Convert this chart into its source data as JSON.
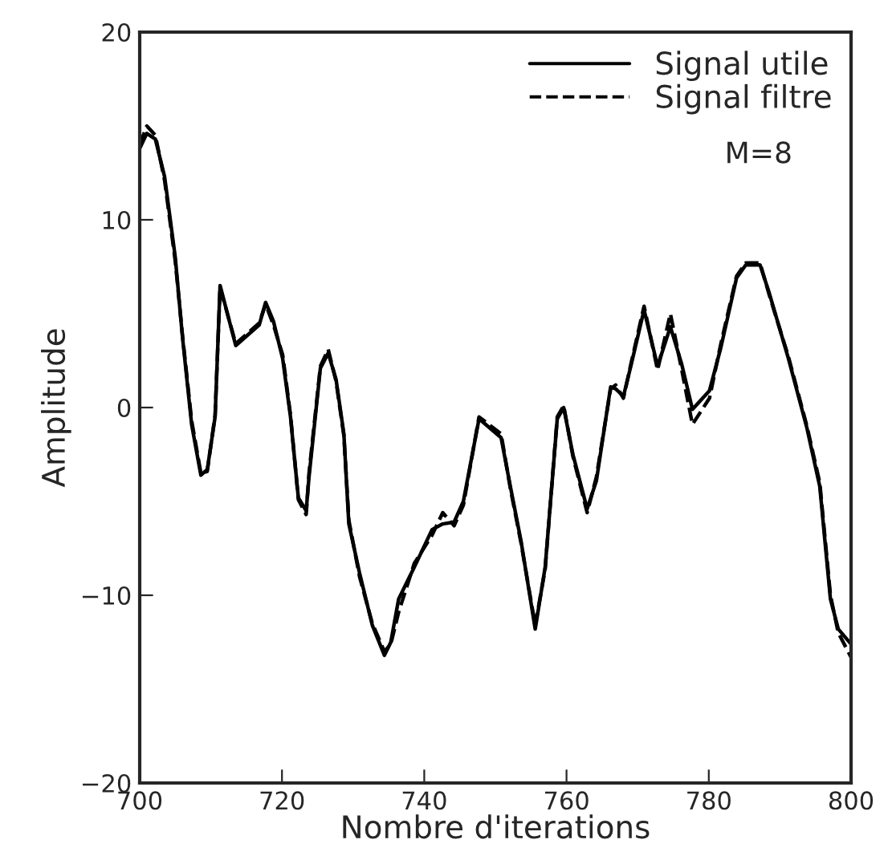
{
  "chart_data": {
    "type": "line",
    "xlabel": "Nombre d'iterations",
    "ylabel": "Amplitude",
    "xlim": [
      700,
      800
    ],
    "ylim": [
      -20,
      20
    ],
    "xticks": [
      700,
      720,
      740,
      760,
      780,
      800
    ],
    "yticks": [
      -20,
      -10,
      0,
      10,
      20
    ],
    "grid": false,
    "legend": "top right",
    "annotations": [
      "M=8"
    ],
    "series": [
      {
        "name": "Signal utile",
        "color": "#000000",
        "line_style": "solid",
        "x": [
          700,
          701,
          702.2,
          703.5,
          705,
          706,
          707.3,
          708.6,
          709.5,
          710.6,
          711.3,
          713.5,
          716.8,
          717.7,
          718.8,
          720.1,
          721.2,
          722.3,
          723.4,
          723.8,
          725.4,
          726.5,
          727.6,
          728.7,
          729.4,
          730.9,
          732.7,
          734.4,
          735.3,
          736.4,
          738.6,
          741.1,
          742.6,
          744.2,
          745.5,
          747.7,
          750.8,
          752.1,
          753.6,
          755.6,
          757,
          758.7,
          759.6,
          760.9,
          762.9,
          764.2,
          766.2,
          766.9,
          768,
          769.1,
          770.9,
          772.8,
          774.6,
          776.2,
          777.7,
          780.1,
          781.7,
          783.9,
          785.2,
          787.2,
          788.5,
          791.2,
          793.8,
          795.6,
          797.1,
          798.2,
          800
        ],
        "values": [
          13.8,
          14.6,
          14.3,
          12.3,
          8,
          3.8,
          -0.9,
          -3.6,
          -3.3,
          -0.5,
          6.5,
          3.3,
          4.4,
          5.6,
          4.6,
          2.6,
          -0.5,
          -4.8,
          -5.5,
          -3.7,
          2.1,
          2.9,
          1.5,
          -1.4,
          -6.2,
          -8.8,
          -11.6,
          -13.2,
          -12.5,
          -10.2,
          -8.5,
          -6.5,
          -6.2,
          -6.1,
          -5.0,
          -0.6,
          -1.6,
          -4.2,
          -7.1,
          -11.8,
          -8.5,
          -0.6,
          0.0,
          -2.5,
          -5.4,
          -3.9,
          1.1,
          1.0,
          0.6,
          2.3,
          5.2,
          2.2,
          4.3,
          2.3,
          -0.1,
          0.9,
          3.2,
          6.9,
          7.6,
          7.6,
          6.1,
          2.6,
          -1.1,
          -4.2,
          -10.2,
          -11.8,
          -12.6
        ]
      },
      {
        "name": "Signal filtre",
        "color": "#000000",
        "line_style": "dashed",
        "x": [
          700,
          701,
          702.2,
          703.5,
          705,
          706,
          707.3,
          708.6,
          709.5,
          710.6,
          711.3,
          713.5,
          716.8,
          717.7,
          718.8,
          720.1,
          721.2,
          722.3,
          723.4,
          723.8,
          725.4,
          726.5,
          727.6,
          728.7,
          729.4,
          730.9,
          732.7,
          734.4,
          735.3,
          736.4,
          738.6,
          741.1,
          742.6,
          744.2,
          745.5,
          747.7,
          750.8,
          752.1,
          753.6,
          755.6,
          757,
          758.7,
          759.6,
          760.9,
          762.9,
          764.2,
          766.2,
          766.9,
          768,
          769.1,
          770.9,
          772.8,
          774.6,
          776.2,
          777.7,
          780.1,
          781.7,
          783.9,
          785.2,
          787.2,
          788.5,
          791.2,
          793.8,
          795.6,
          797.1,
          798.2,
          800
        ],
        "values": [
          14.0,
          15.0,
          14.5,
          12.1,
          7.8,
          3.9,
          -0.7,
          -3.5,
          -3.4,
          -0.4,
          6.4,
          3.4,
          4.5,
          5.5,
          4.4,
          2.8,
          -0.4,
          -4.9,
          -5.7,
          -3.5,
          2.2,
          3.1,
          1.4,
          -1.5,
          -6.0,
          -9.0,
          -11.5,
          -13.0,
          -12.6,
          -10.9,
          -8.3,
          -6.8,
          -5.6,
          -6.3,
          -5.2,
          -0.5,
          -1.4,
          -4.3,
          -7.2,
          -11.6,
          -8.6,
          -0.5,
          0.1,
          -2.6,
          -5.6,
          -3.7,
          1.0,
          1.2,
          0.5,
          2.4,
          5.4,
          2.0,
          5.0,
          2.0,
          -0.9,
          0.5,
          3.4,
          7.0,
          7.7,
          7.7,
          6.0,
          2.7,
          -1.0,
          -4.0,
          -10.0,
          -12.0,
          -13.3
        ]
      }
    ]
  }
}
